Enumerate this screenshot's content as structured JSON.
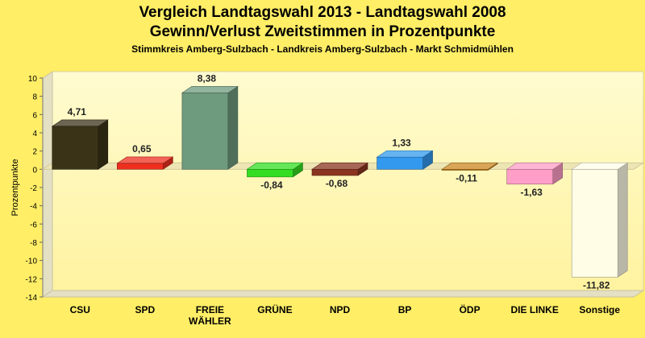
{
  "chart_data": {
    "type": "bar",
    "title": "Vergleich Landtagswahl 2013 - Landtagswahl 2008",
    "subtitle": "Gewinn/Verlust Zweitstimmen in Prozentpunkte",
    "subtitle2": "Stimmkreis Amberg-Sulzbach - Landkreis Amberg-Sulzbach - Markt Schmidmühlen",
    "ylabel": "Prozentpunkte",
    "ylim": [
      -14,
      10
    ],
    "ytick_step": 2,
    "grid": false,
    "categories": [
      "CSU",
      "SPD",
      "FREIE WÄHLER",
      "GRÜNE",
      "NPD",
      "BP",
      "ÖDP",
      "DIE LINKE",
      "Sonstige"
    ],
    "category_lines": [
      [
        "CSU"
      ],
      [
        "SPD"
      ],
      [
        "FREIE",
        "WÄHLER"
      ],
      [
        "GRÜNE"
      ],
      [
        "NPD"
      ],
      [
        "BP"
      ],
      [
        "ÖDP"
      ],
      [
        "DIE LINKE"
      ],
      [
        "Sonstige"
      ]
    ],
    "values": [
      4.71,
      0.65,
      8.38,
      -0.84,
      -0.68,
      1.33,
      -0.11,
      -1.63,
      -11.82
    ],
    "value_labels": [
      "4,71",
      "0,65",
      "8,38",
      "-0,84",
      "-0,68",
      "1,33",
      "-0,11",
      "-1,63",
      "-11,82"
    ],
    "colors": [
      "#3A3318",
      "#EE2F1E",
      "#6E9A7E",
      "#33DD22",
      "#8B3520",
      "#3399EE",
      "#CC8822",
      "#FF9EC6",
      "#FFFDE6"
    ]
  }
}
